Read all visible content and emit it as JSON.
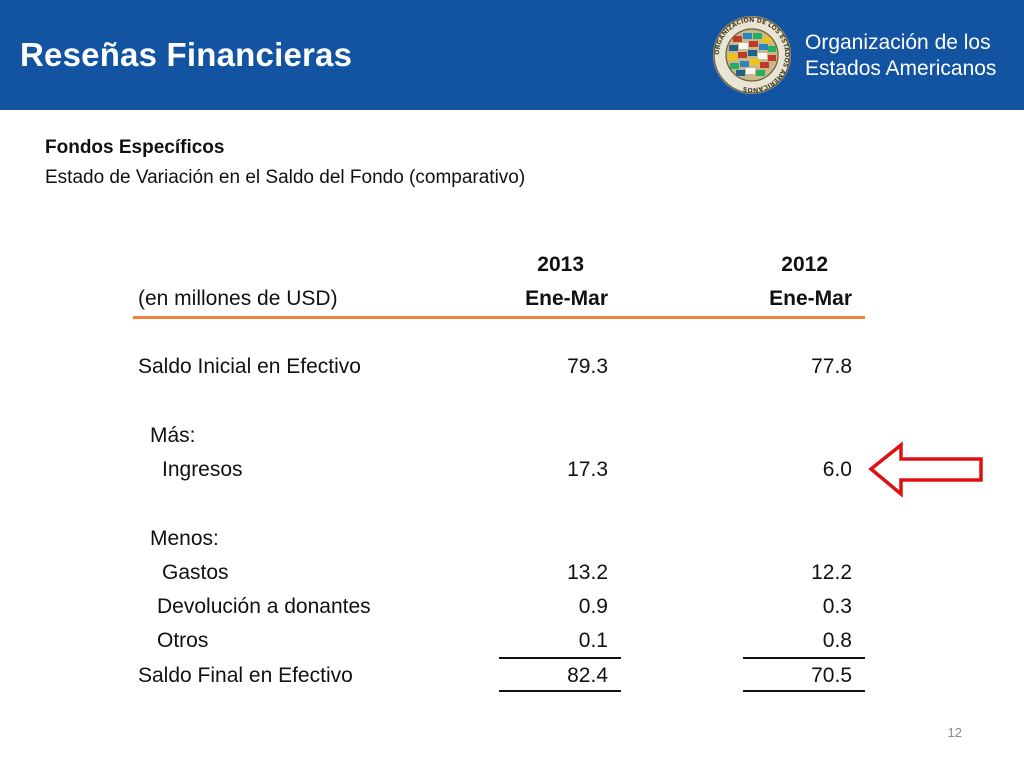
{
  "header": {
    "title": "Reseñas Financieras",
    "org_line1": "Organización de los",
    "org_line2": "Estados Americanos",
    "seal_name": "oas-seal-logo",
    "seal_text": "ORGANIZACION DE LOS ESTADOS AMERICANOS",
    "background_color": "#1254a1"
  },
  "subheading": {
    "title": "Fondos Específicos",
    "subtitle": "Estado de Variación en el Saldo del Fondo (comparativo)"
  },
  "table": {
    "unit_label": "(en millones de USD)",
    "columns": [
      {
        "year": "2013",
        "period": "Ene-Mar"
      },
      {
        "year": "2012",
        "period": "Ene-Mar"
      }
    ],
    "rows": {
      "saldo_inicial": {
        "label": "Saldo Inicial en Efectivo",
        "v2013": "79.3",
        "v2012": "77.8"
      },
      "mas": {
        "label": "Más:"
      },
      "ingresos": {
        "label": "Ingresos",
        "v2013": "17.3",
        "v2012": "6.0"
      },
      "menos": {
        "label": "Menos:"
      },
      "gastos": {
        "label": "Gastos",
        "v2013": "13.2",
        "v2012": "12.2"
      },
      "devolucion": {
        "label": "Devolución a donantes",
        "v2013": "0.9",
        "v2012": "0.3"
      },
      "otros": {
        "label": "Otros",
        "v2013": "0.1",
        "v2012": "0.8"
      },
      "saldo_final": {
        "label": "Saldo Final en Efectivo",
        "v2013": "82.4",
        "v2012": "70.5"
      }
    },
    "rule_color": "#f0803c"
  },
  "annotation": {
    "arrow_icon": "left-arrow-icon",
    "color": "#e01010"
  },
  "footer": {
    "page_number": "12"
  }
}
